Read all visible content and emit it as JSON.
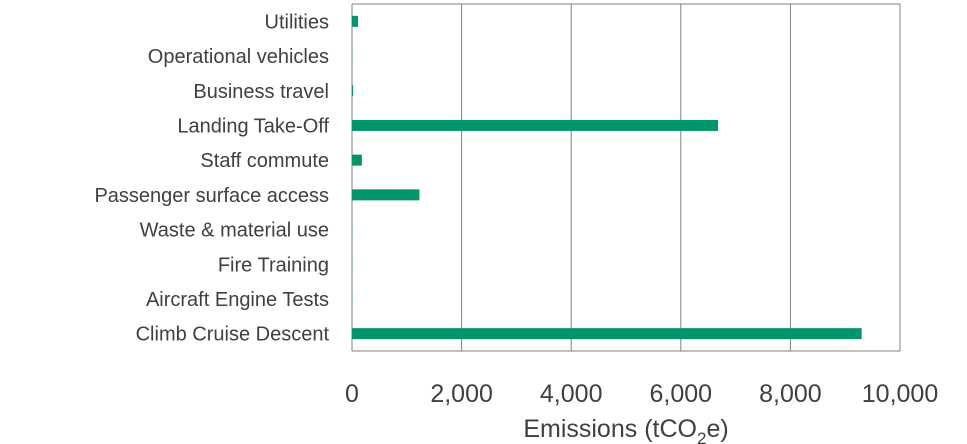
{
  "chart_data": {
    "type": "bar",
    "orientation": "horizontal",
    "categories": [
      "Utilities",
      "Operational vehicles",
      "Business travel",
      "Landing Take-Off",
      "Staff commute",
      "Passenger surface access",
      "Waste & material use",
      "Fire Training",
      "Aircraft Engine Tests",
      "Climb Cruise Descent"
    ],
    "values": [
      110,
      5,
      20,
      6680,
      180,
      1230,
      5,
      5,
      5,
      9300
    ],
    "xlim": [
      0,
      10000
    ],
    "xticks": [
      0,
      2000,
      4000,
      6000,
      8000,
      10000
    ],
    "xtick_labels": [
      "0",
      "2,000",
      "4,000",
      "6,000",
      "8,000",
      "10,000"
    ],
    "xlabel": {
      "prefix": "Emissions (tCO",
      "subscript": "2",
      "suffix": "e)"
    },
    "ylabel": "",
    "title": "",
    "grid": "vertical",
    "legend": "none",
    "bar_color": "#00956a",
    "grid_color": "#808080"
  }
}
